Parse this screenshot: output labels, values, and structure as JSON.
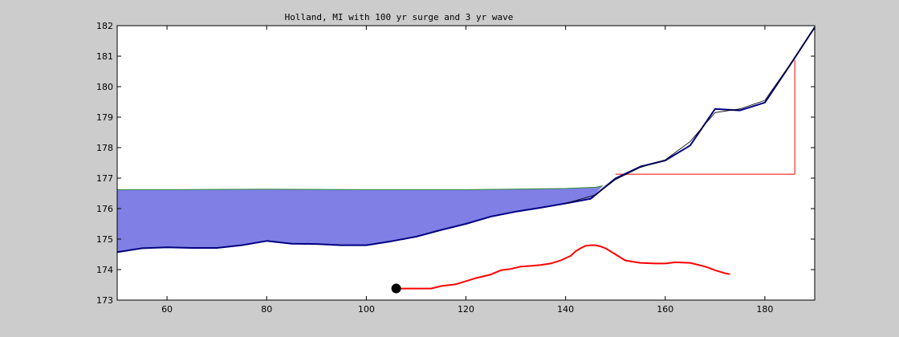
{
  "chart_data": {
    "type": "line",
    "title": "Holland, MI with 100 yr surge and 3 yr wave",
    "xlabel": "",
    "ylabel": "",
    "xlim": [
      50,
      190
    ],
    "ylim": [
      173,
      182
    ],
    "xticks": [
      60,
      80,
      100,
      120,
      140,
      160,
      180
    ],
    "yticks": [
      173,
      174,
      175,
      176,
      177,
      178,
      179,
      180,
      181,
      182
    ],
    "grid": false,
    "colors": {
      "background": "#cccccc",
      "plot_area": "#ffffff",
      "water_fill": "#7f7fe6",
      "water_surface": "#2f8f2f",
      "profile_line": "#00007f",
      "profile_thin": "#000000",
      "runup_line": "#ff0000",
      "marker": "#000000"
    },
    "series": [
      {
        "role": "water-surface",
        "x": [
          50,
          60,
          80,
          100,
          120,
          140,
          146,
          147.5
        ],
        "y": [
          176.62,
          176.62,
          176.64,
          176.62,
          176.62,
          176.66,
          176.7,
          176.75
        ]
      },
      {
        "role": "beach-profile",
        "x": [
          50,
          55,
          60,
          65,
          70,
          75,
          80,
          85,
          90,
          95,
          100,
          105,
          110,
          115,
          120,
          125,
          130,
          135,
          140,
          145,
          150,
          155,
          160,
          165,
          170,
          172,
          175,
          180,
          185,
          190
        ],
        "y": [
          174.57,
          174.7,
          174.73,
          174.71,
          174.71,
          174.8,
          174.94,
          174.85,
          174.84,
          174.8,
          174.8,
          174.93,
          175.08,
          175.3,
          175.5,
          175.74,
          175.9,
          176.03,
          176.17,
          176.32,
          176.99,
          177.38,
          177.58,
          178.07,
          179.27,
          179.25,
          179.22,
          179.48,
          180.7,
          181.95
        ]
      },
      {
        "role": "profile-fit",
        "x": [
          140,
          146,
          150,
          155,
          160,
          165,
          170,
          175,
          180,
          185,
          190
        ],
        "y": [
          176.17,
          176.45,
          176.95,
          177.35,
          177.6,
          178.2,
          179.15,
          179.27,
          179.55,
          180.72,
          181.93
        ]
      },
      {
        "role": "runup-triangle",
        "x": [
          150,
          186,
          186
        ],
        "y": [
          177.13,
          177.13,
          180.87
        ]
      },
      {
        "role": "wave-height-profile",
        "x": [
          106,
          108,
          110,
          113,
          115,
          118,
          120,
          122,
          125,
          127,
          129,
          131,
          133,
          135,
          137,
          139,
          141,
          142,
          143,
          144,
          145,
          146,
          147,
          148,
          150,
          152,
          155,
          158,
          160,
          162,
          165,
          168,
          170,
          172,
          173
        ],
        "y": [
          173.38,
          173.38,
          173.38,
          173.38,
          173.46,
          173.52,
          173.62,
          173.72,
          173.84,
          173.98,
          174.02,
          174.1,
          174.12,
          174.15,
          174.2,
          174.3,
          174.45,
          174.6,
          174.7,
          174.78,
          174.8,
          174.8,
          174.76,
          174.7,
          174.5,
          174.3,
          174.22,
          174.2,
          174.2,
          174.24,
          174.22,
          174.1,
          173.98,
          173.88,
          173.85
        ]
      }
    ],
    "marker": {
      "x": 106,
      "y": 173.38
    }
  }
}
